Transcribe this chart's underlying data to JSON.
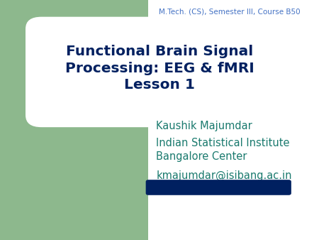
{
  "bg_color": "#ffffff",
  "green_panel_color": "#8db88d",
  "title_text": "Functional Brain Signal\nProcessing: EEG & fMRI\nLesson 1",
  "title_color": "#002060",
  "title_fontsize": 14.5,
  "author_text": "Kaushik Majumdar",
  "institute_text": "Indian Statistical Institute\nBangalore Center",
  "email_text": "kmajumdar@isibang.ac.in",
  "text_color": "#1a7a6e",
  "text_fontsize": 10.5,
  "bar_color": "#002060",
  "header_text": "M.Tech. (CS), Semester III, Course B50",
  "header_fontsize": 7.5,
  "header_color": "#4472c4"
}
